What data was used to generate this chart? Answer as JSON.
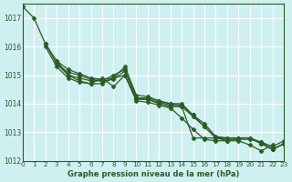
{
  "title": "Graphe pression niveau de la mer (hPa)",
  "bg_color": "#cff0f0",
  "grid_color": "#ffffff",
  "line_color": "#2d5a27",
  "xlim": [
    0,
    23
  ],
  "ylim": [
    1012,
    1017.5
  ],
  "yticks": [
    1012,
    1013,
    1014,
    1015,
    1016,
    1017
  ],
  "xticks": [
    0,
    1,
    2,
    3,
    4,
    5,
    6,
    7,
    8,
    9,
    10,
    11,
    12,
    13,
    14,
    15,
    16,
    17,
    18,
    19,
    20,
    21,
    22,
    23
  ],
  "lines": [
    {
      "x": [
        0,
        1,
        2,
        3,
        4,
        5,
        6,
        7,
        8,
        9,
        10,
        11,
        12,
        13,
        14,
        15,
        16,
        17,
        18,
        19,
        20,
        21,
        22,
        23
      ],
      "y": [
        1017.4,
        1017.0,
        1016.1,
        1015.4,
        1015.0,
        1014.8,
        1014.7,
        1014.9,
        1014.6,
        1015.0,
        1014.15,
        1014.15,
        1014.0,
        1013.9,
        1013.9,
        1012.8,
        1012.8,
        1012.8,
        1012.7,
        1012.8,
        1012.8,
        1012.6,
        1012.4,
        1012.6
      ]
    },
    {
      "x": [
        2,
        3,
        4,
        5,
        6,
        7,
        8,
        9,
        10,
        11,
        12,
        13,
        14,
        15,
        16,
        17,
        18,
        19,
        20,
        21,
        22,
        23
      ],
      "y": [
        1016.1,
        1015.5,
        1015.0,
        1014.9,
        1014.8,
        1014.8,
        1015.0,
        1015.2,
        1014.2,
        1014.2,
        1014.1,
        1014.0,
        1014.0,
        1013.6,
        1013.2,
        1012.8,
        1012.8,
        1012.8,
        1012.8,
        1012.6,
        1012.4,
        1012.6
      ]
    },
    {
      "x": [
        3,
        4,
        5,
        6,
        7,
        8,
        9,
        10,
        11,
        12,
        13,
        14,
        15,
        16,
        17,
        18,
        19,
        20,
        21,
        22,
        23
      ],
      "y": [
        1015.4,
        1015.1,
        1015.0,
        1014.85,
        1014.8,
        1014.85,
        1015.15,
        1014.2,
        1014.15,
        1014.05,
        1013.95,
        1013.9,
        1013.55,
        1013.2,
        1012.8,
        1012.75,
        1012.75,
        1012.75,
        1012.65,
        1012.4,
        1012.6
      ]
    },
    {
      "x": [
        3,
        4,
        5,
        6,
        7,
        8,
        9,
        10,
        11,
        12,
        13,
        14,
        15,
        16,
        17,
        18,
        19,
        20,
        21,
        22,
        23
      ],
      "y": [
        1015.5,
        1015.2,
        1015.05,
        1014.9,
        1014.85,
        1014.9,
        1015.3,
        1014.3,
        1014.25,
        1014.1,
        1014.0,
        1013.95,
        1013.6,
        1013.3,
        1012.85,
        1012.8,
        1012.8,
        1012.8,
        1012.65,
        1012.5,
        1012.7
      ]
    },
    {
      "x": [
        2,
        3,
        4,
        5,
        6,
        7,
        8,
        9,
        10,
        11,
        12,
        13,
        14,
        15,
        16,
        17,
        18,
        19,
        20,
        21,
        22
      ],
      "y": [
        1016.0,
        1015.3,
        1014.9,
        1014.75,
        1014.7,
        1014.7,
        1014.9,
        1015.0,
        1014.1,
        1014.05,
        1013.95,
        1013.85,
        1013.5,
        1013.1,
        1012.75,
        1012.7,
        1012.7,
        1012.7,
        1012.55,
        1012.35,
        1012.55
      ]
    }
  ],
  "marker": "D",
  "markersize": 2.5
}
